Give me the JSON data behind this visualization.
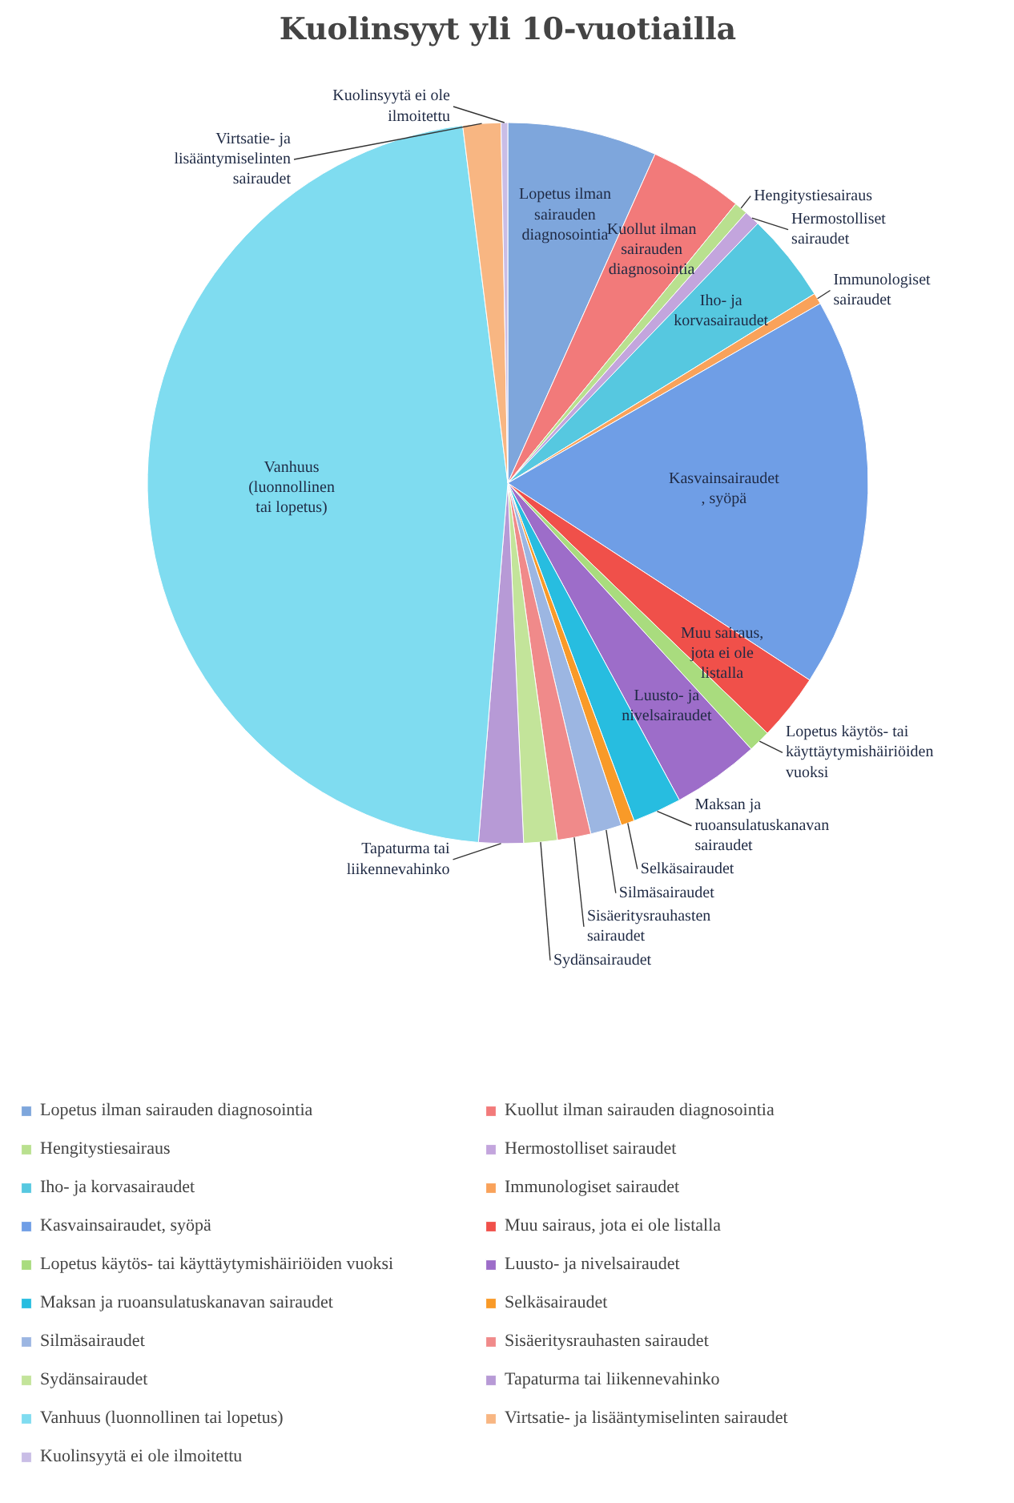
{
  "chart_data": {
    "type": "pie",
    "title": "Kuolinsyyt yli 10-vuotiailla",
    "categories": [
      "Lopetus ilman sairauden diagnosointia",
      "Kuollut ilman sairauden diagnosointia",
      "Hengitystiesairaus",
      "Hermostolliset sairaudet",
      "Iho- ja korvasairaudet",
      "Immunologiset sairaudet",
      "Kasvainsairaudet, syöpä",
      "Muu sairaus, jota ei ole listalla",
      "Lopetus käytös- tai käyttäytymishäiriöiden vuoksi",
      "Luusto- ja nivelsairaudet",
      "Maksan ja ruoansulatuskanavan sairaudet",
      "Selkäsairaudet",
      "Silmäsairaudet",
      "Sisäeritysrauhasten sairaudet",
      "Sydänsairaudet",
      "Tapaturma tai liikennevahinko",
      "Vanhuus (luonnollinen tai lopetus)",
      "Virtsatie- ja lisääntymiselinten sairaudet",
      "Kuolinsyytä ei ole ilmoitettu"
    ],
    "values": [
      6.7,
      4.2,
      0.6,
      0.7,
      4.0,
      0.5,
      17.5,
      3.0,
      1.0,
      3.9,
      2.2,
      0.6,
      1.4,
      1.5,
      1.5,
      2.0,
      46.7,
      1.7,
      0.3
    ],
    "colors": [
      "#7ea6dc",
      "#f27a7a",
      "#b9e08f",
      "#c3a5dd",
      "#56c8e0",
      "#f9a25a",
      "#6f9ee6",
      "#f0504a",
      "#a9dc7e",
      "#9d6dc9",
      "#27bde0",
      "#f99a28",
      "#9cb6e2",
      "#f08a8a",
      "#c3e49a",
      "#b79ad6",
      "#7fdcf0",
      "#f8b682",
      "#c9bde6"
    ],
    "legend": "bottom"
  }
}
